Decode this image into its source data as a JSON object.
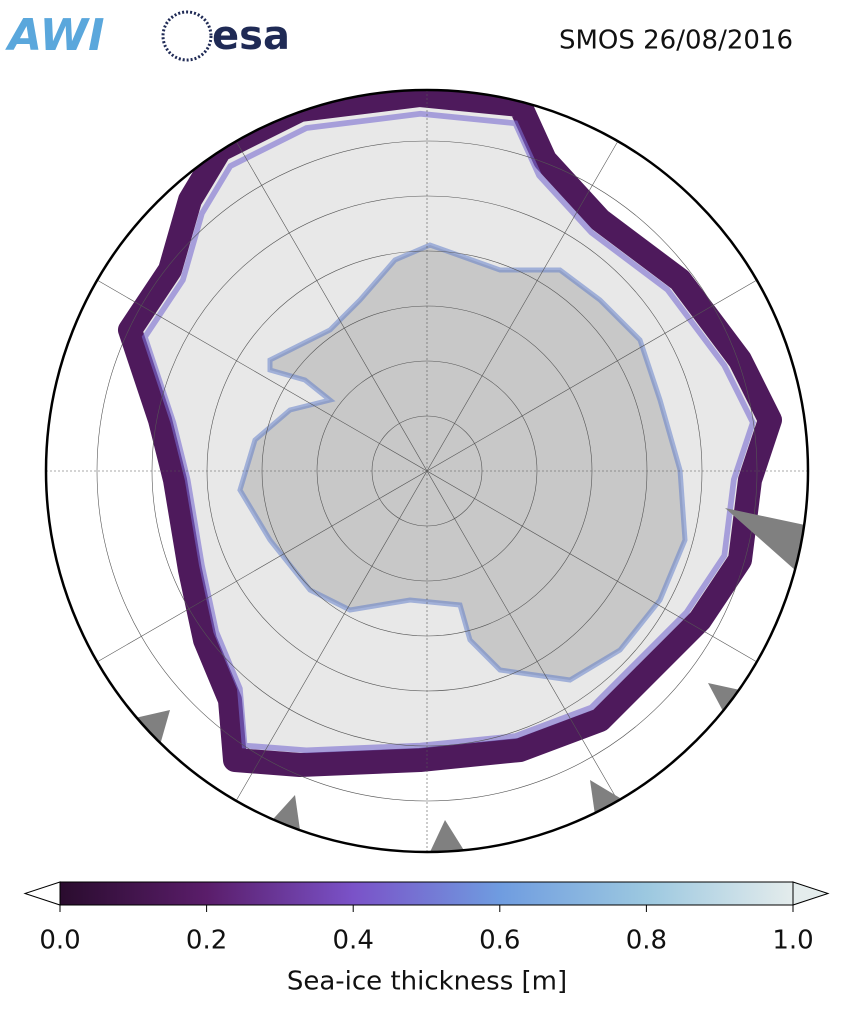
{
  "logos": [
    "AWI",
    "esa"
  ],
  "title": "SMOS 26/08/2016",
  "colorbar": {
    "label": "Sea-ice thickness [m]",
    "lim": [
      0,
      1
    ],
    "ticks": [
      {
        "value": 0,
        "label": "0.0"
      },
      {
        "value": 0.2,
        "label": "0.2"
      },
      {
        "value": 0.4,
        "label": "0.4"
      },
      {
        "value": 0.6,
        "label": "0.6"
      },
      {
        "value": 0.8,
        "label": "0.8"
      },
      {
        "value": 1,
        "label": "1.0"
      }
    ],
    "colors": [
      "#2a0c2e",
      "#5a1d6a",
      "#7a52c8",
      "#6f9ce0",
      "#9cc8e0",
      "#e4ecec"
    ]
  }
}
